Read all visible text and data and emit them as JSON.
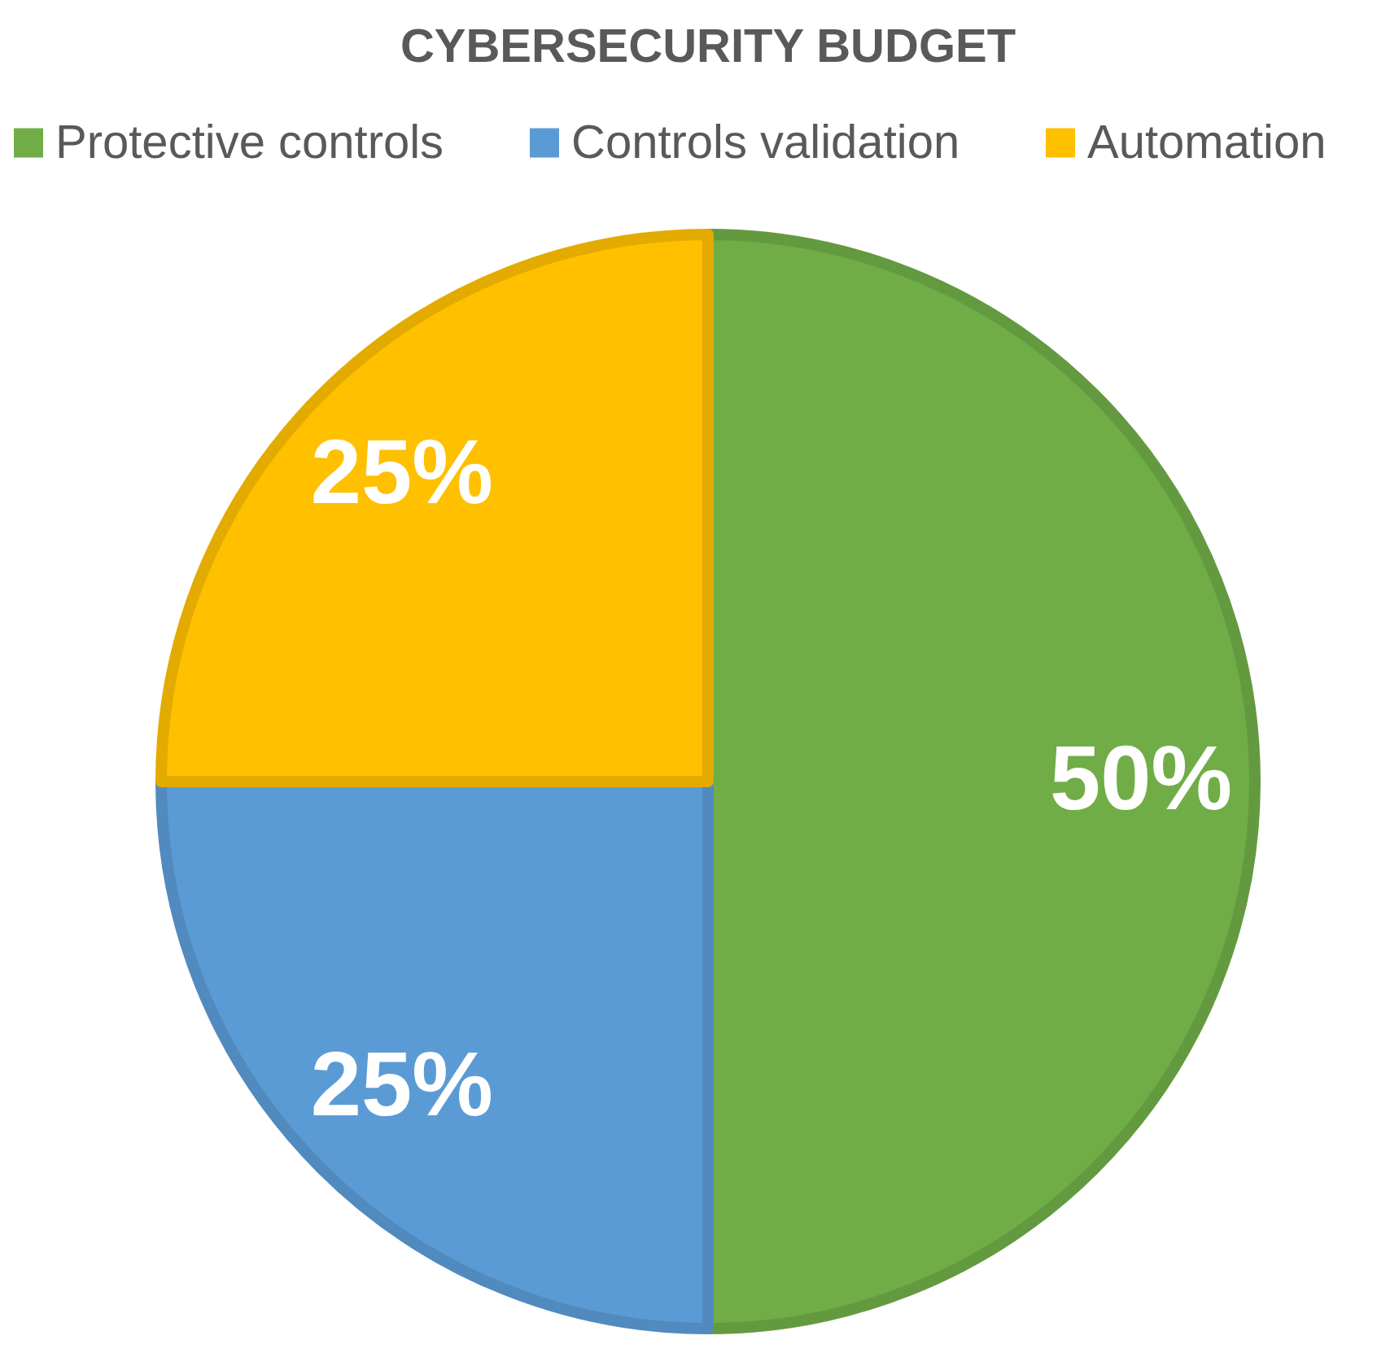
{
  "chart_data": {
    "type": "pie",
    "title": "CYBERSECURITY BUDGET",
    "categories": [
      "Protective controls",
      "Controls validation",
      "Automation"
    ],
    "values": [
      50,
      25,
      25
    ],
    "colors": [
      "#70ad47",
      "#5b9bd5",
      "#ffc000"
    ],
    "value_labels": [
      "50%",
      "25%",
      "25%"
    ],
    "legend": "top"
  }
}
